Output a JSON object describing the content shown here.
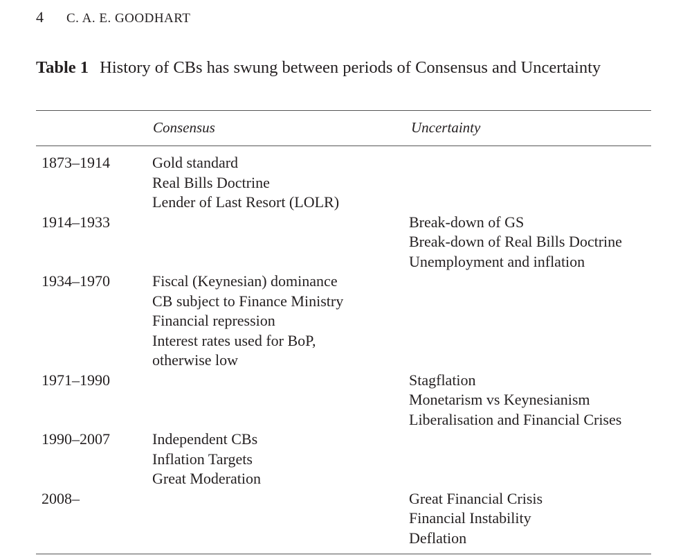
{
  "running_head": {
    "page_number": "4",
    "author": "C. A. E. GOODHART"
  },
  "table": {
    "label": "Table 1",
    "title": "History of CBs has swung between periods of Consensus and Uncertainty",
    "columns": [
      "",
      "Consensus",
      "Uncertainty"
    ],
    "rows": [
      {
        "period": "1873–1914",
        "consensus": [
          "Gold standard",
          "Real Bills Doctrine",
          "Lender of Last Resort (LOLR)"
        ],
        "uncertainty": []
      },
      {
        "period": "1914–1933",
        "consensus": [],
        "uncertainty": [
          "Break-down of GS",
          "Break-down of Real Bills Doctrine",
          "Unemployment and inflation"
        ]
      },
      {
        "period": "1934–1970",
        "consensus": [
          "Fiscal (Keynesian) dominance",
          "CB subject to Finance Ministry",
          "Financial repression",
          "Interest rates used for BoP,",
          "otherwise low"
        ],
        "uncertainty": []
      },
      {
        "period": "1971–1990",
        "consensus": [],
        "uncertainty": [
          "Stagflation",
          "Monetarism vs Keynesianism",
          "Liberalisation and Financial Crises"
        ]
      },
      {
        "period": "1990–2007",
        "consensus": [
          "Independent CBs",
          "Inflation Targets",
          "Great Moderation"
        ],
        "uncertainty": []
      },
      {
        "period": "2008–",
        "consensus": [],
        "uncertainty": [
          "Great Financial Crisis",
          "Financial Instability",
          "Deflation"
        ]
      }
    ]
  }
}
